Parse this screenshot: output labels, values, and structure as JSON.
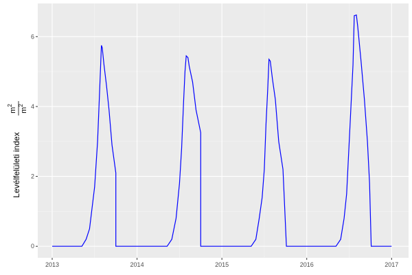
{
  "chart_data": {
    "type": "line",
    "title": "",
    "xlabel": "",
    "ylabel": "Levélfelületi index",
    "ylabel_unit_num": "m2",
    "ylabel_unit_den": "m2",
    "xlim": [
      2012.83,
      2017.2
    ],
    "ylim": [
      -0.33,
      6.95
    ],
    "xticks": [
      2013,
      2014,
      2015,
      2016,
      2017
    ],
    "xtick_labels": [
      "2013",
      "2014",
      "2015",
      "2016",
      "2017"
    ],
    "yticks": [
      0,
      2,
      4,
      6
    ],
    "ytick_labels": [
      "0",
      "2",
      "4",
      "6"
    ],
    "grid": true,
    "line_color": "#0000ff",
    "panel_background": "#ebebeb",
    "series": [
      {
        "x": [
          2013.0,
          2013.35,
          2013.4,
          2013.44,
          2013.47,
          2013.5,
          2013.535,
          2013.56,
          2013.58,
          2013.59,
          2013.61,
          2013.64,
          2013.67,
          2013.705,
          2013.75,
          2013.75,
          2014.355,
          2014.41,
          2014.46,
          2014.5,
          2014.525,
          2014.55,
          2014.565,
          2014.58,
          2014.6,
          2014.615,
          2014.655,
          2014.695,
          2014.75,
          2014.75,
          2015.345,
          2015.4,
          2015.44,
          2015.475,
          2015.5,
          2015.52,
          2015.54,
          2015.555,
          2015.57,
          2015.595,
          2015.63,
          2015.67,
          2015.72,
          2015.76,
          2016.345,
          2016.4,
          2016.44,
          2016.47,
          2016.505,
          2016.545,
          2016.56,
          2016.585,
          2016.6,
          2016.64,
          2016.68,
          2016.715,
          2016.74,
          2016.76,
          2017.0
        ],
        "y": [
          0,
          0,
          0.2,
          0.5,
          1.1,
          1.7,
          3.0,
          4.5,
          5.75,
          5.68,
          5.2,
          4.6,
          3.9,
          2.9,
          2.1,
          0,
          0,
          0.2,
          0.8,
          1.8,
          2.8,
          4.2,
          5.0,
          5.45,
          5.4,
          5.15,
          4.7,
          3.9,
          3.25,
          0,
          0,
          0.2,
          0.8,
          1.4,
          2.2,
          3.5,
          4.5,
          5.35,
          5.3,
          4.8,
          4.2,
          3.0,
          2.2,
          0,
          0,
          0.2,
          0.8,
          1.5,
          3.2,
          5.2,
          6.6,
          6.62,
          6.3,
          5.3,
          4.2,
          3.0,
          1.8,
          0,
          0
        ]
      }
    ]
  }
}
